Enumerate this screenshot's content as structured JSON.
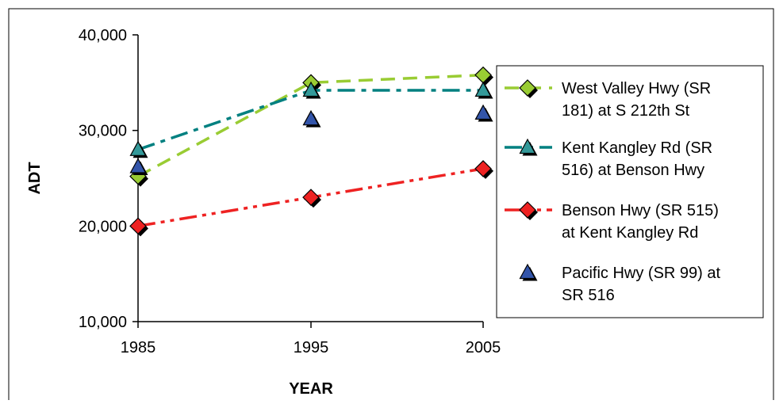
{
  "chart_data": {
    "type": "line",
    "title": "",
    "xlabel": "YEAR",
    "ylabel": "ADT",
    "x": [
      1985,
      1995,
      2005
    ],
    "x_tick_labels": [
      "1985",
      "1995",
      "2005"
    ],
    "ylim": [
      10000,
      40000
    ],
    "y_ticks": [
      10000,
      20000,
      30000,
      40000
    ],
    "y_tick_labels": [
      "10,000",
      "20,000",
      "30,000",
      "40,000"
    ],
    "grid": false,
    "legend_position": "right",
    "series": [
      {
        "name_lines": [
          "West Valley Hwy (SR",
          "181) at S 212th St"
        ],
        "values": [
          25200,
          35000,
          35800
        ],
        "color": "#99cc33",
        "marker": "diamond",
        "marker_color": "#99cc33",
        "line": "dashed"
      },
      {
        "name_lines": [
          "Kent Kangley Rd (SR",
          "516) at Benson Hwy"
        ],
        "values": [
          28000,
          34200,
          34200
        ],
        "color": "#008080",
        "marker": "triangle",
        "marker_color": "#339999",
        "line": "dashdot"
      },
      {
        "name_lines": [
          "Benson Hwy (SR 515)",
          "at Kent Kangley Rd"
        ],
        "values": [
          20000,
          23000,
          26000
        ],
        "color": "#ee2222",
        "marker": "diamond",
        "marker_color": "#ee2222",
        "line": "dashdotdot"
      },
      {
        "name_lines": [
          "Pacific Hwy (SR 99) at",
          "SR 516"
        ],
        "values": [
          26200,
          31200,
          31800
        ],
        "color": "#3355aa",
        "marker": "triangle",
        "marker_color": "#3355aa",
        "line": "none"
      }
    ]
  }
}
